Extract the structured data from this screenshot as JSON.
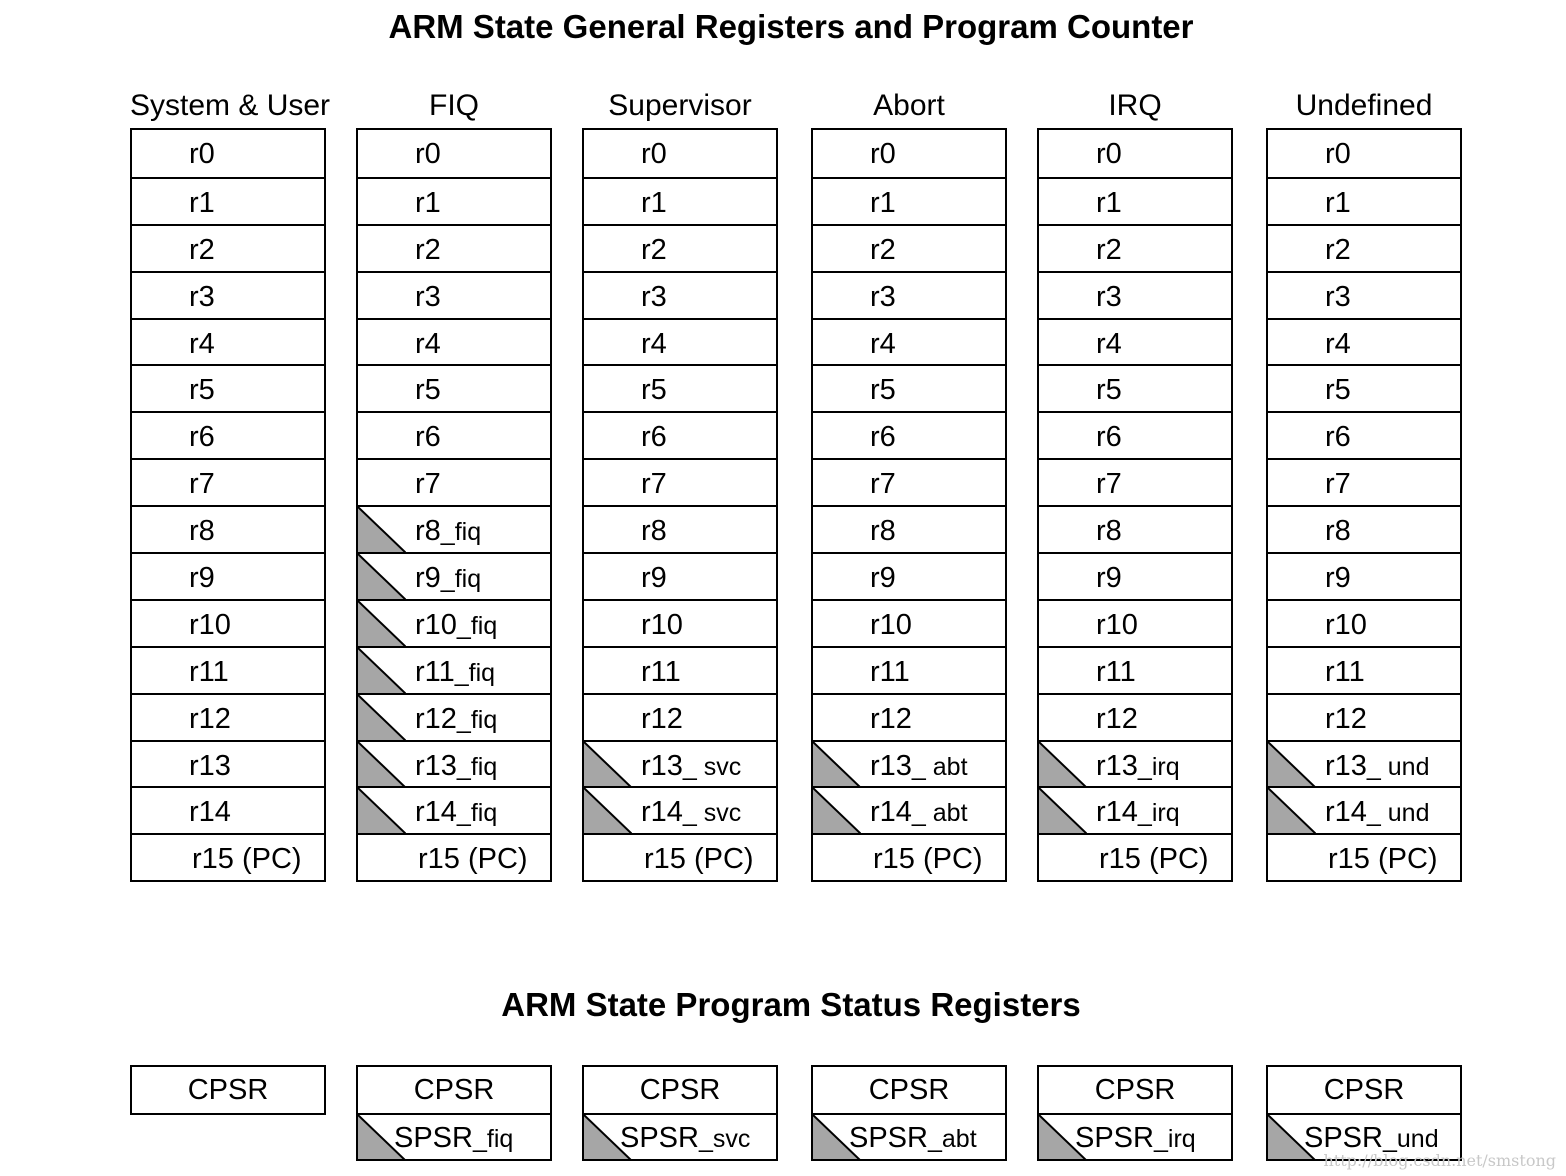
{
  "title": "ARM State General Registers and Program Counter",
  "psr_title": "ARM State Program Status Registers",
  "colors": {
    "banked_fill": "#a6a6a6",
    "line": "#000000"
  },
  "modes": [
    {
      "name": "System & User",
      "registers": [
        {
          "base": "r0"
        },
        {
          "base": "r1"
        },
        {
          "base": "r2"
        },
        {
          "base": "r3"
        },
        {
          "base": "r4"
        },
        {
          "base": "r5"
        },
        {
          "base": "r6"
        },
        {
          "base": "r7"
        },
        {
          "base": "r8"
        },
        {
          "base": "r9"
        },
        {
          "base": "r10"
        },
        {
          "base": "r11"
        },
        {
          "base": "r12"
        },
        {
          "base": "r13"
        },
        {
          "base": "r14"
        },
        {
          "base": "r15 (PC)",
          "pc": true
        }
      ],
      "psr": [
        "CPSR"
      ]
    },
    {
      "name": "FIQ",
      "registers": [
        {
          "base": "r0"
        },
        {
          "base": "r1"
        },
        {
          "base": "r2"
        },
        {
          "base": "r3"
        },
        {
          "base": "r4"
        },
        {
          "base": "r5"
        },
        {
          "base": "r6"
        },
        {
          "base": "r7"
        },
        {
          "base": "r8",
          "suffix": "_fiq",
          "banked": true
        },
        {
          "base": "r9",
          "suffix": "_fiq",
          "banked": true
        },
        {
          "base": "r10",
          "suffix": "_fiq",
          "banked": true
        },
        {
          "base": "r11",
          "suffix": "_fiq",
          "banked": true
        },
        {
          "base": "r12",
          "suffix": "_fiq",
          "banked": true
        },
        {
          "base": "r13",
          "suffix": "_fiq",
          "banked": true
        },
        {
          "base": "r14",
          "suffix": "_fiq",
          "banked": true
        },
        {
          "base": "r15 (PC)",
          "pc": true
        }
      ],
      "psr": [
        "CPSR",
        {
          "base": "SPSR",
          "suffix": "_fiq"
        }
      ]
    },
    {
      "name": "Supervisor",
      "registers": [
        {
          "base": "r0"
        },
        {
          "base": "r1"
        },
        {
          "base": "r2"
        },
        {
          "base": "r3"
        },
        {
          "base": "r4"
        },
        {
          "base": "r5"
        },
        {
          "base": "r6"
        },
        {
          "base": "r7"
        },
        {
          "base": "r8"
        },
        {
          "base": "r9"
        },
        {
          "base": "r10"
        },
        {
          "base": "r11"
        },
        {
          "base": "r12"
        },
        {
          "base": "r13",
          "suffix": "_ svc",
          "banked": true
        },
        {
          "base": "r14",
          "suffix": "_ svc",
          "banked": true
        },
        {
          "base": "r15 (PC)",
          "pc": true
        }
      ],
      "psr": [
        "CPSR",
        {
          "base": "SPSR",
          "suffix": "_svc"
        }
      ]
    },
    {
      "name": "Abort",
      "registers": [
        {
          "base": "r0"
        },
        {
          "base": "r1"
        },
        {
          "base": "r2"
        },
        {
          "base": "r3"
        },
        {
          "base": "r4"
        },
        {
          "base": "r5"
        },
        {
          "base": "r6"
        },
        {
          "base": "r7"
        },
        {
          "base": "r8"
        },
        {
          "base": "r9"
        },
        {
          "base": "r10"
        },
        {
          "base": "r11"
        },
        {
          "base": "r12"
        },
        {
          "base": "r13",
          "suffix": "_ abt",
          "banked": true
        },
        {
          "base": "r14",
          "suffix": "_ abt",
          "banked": true
        },
        {
          "base": "r15 (PC)",
          "pc": true
        }
      ],
      "psr": [
        "CPSR",
        {
          "base": "SPSR",
          "suffix": "_abt"
        }
      ]
    },
    {
      "name": "IRQ",
      "registers": [
        {
          "base": "r0"
        },
        {
          "base": "r1"
        },
        {
          "base": "r2"
        },
        {
          "base": "r3"
        },
        {
          "base": "r4"
        },
        {
          "base": "r5"
        },
        {
          "base": "r6"
        },
        {
          "base": "r7"
        },
        {
          "base": "r8"
        },
        {
          "base": "r9"
        },
        {
          "base": "r10"
        },
        {
          "base": "r11"
        },
        {
          "base": "r12"
        },
        {
          "base": "r13",
          "suffix": "_irq",
          "banked": true
        },
        {
          "base": "r14",
          "suffix": "_irq",
          "banked": true
        },
        {
          "base": "r15 (PC)",
          "pc": true
        }
      ],
      "psr": [
        "CPSR",
        {
          "base": "SPSR",
          "suffix": "_irq"
        }
      ]
    },
    {
      "name": "Undefined",
      "registers": [
        {
          "base": "r0"
        },
        {
          "base": "r1"
        },
        {
          "base": "r2"
        },
        {
          "base": "r3"
        },
        {
          "base": "r4"
        },
        {
          "base": "r5"
        },
        {
          "base": "r6"
        },
        {
          "base": "r7"
        },
        {
          "base": "r8"
        },
        {
          "base": "r9"
        },
        {
          "base": "r10"
        },
        {
          "base": "r11"
        },
        {
          "base": "r12"
        },
        {
          "base": "r13",
          "suffix": "_ und",
          "banked": true
        },
        {
          "base": "r14",
          "suffix": "_ und",
          "banked": true
        },
        {
          "base": "r15 (PC)",
          "pc": true
        }
      ],
      "psr": [
        "CPSR",
        {
          "base": "SPSR",
          "suffix": "_und"
        }
      ]
    }
  ],
  "watermark": "http://blog.csdn.net/smstong"
}
